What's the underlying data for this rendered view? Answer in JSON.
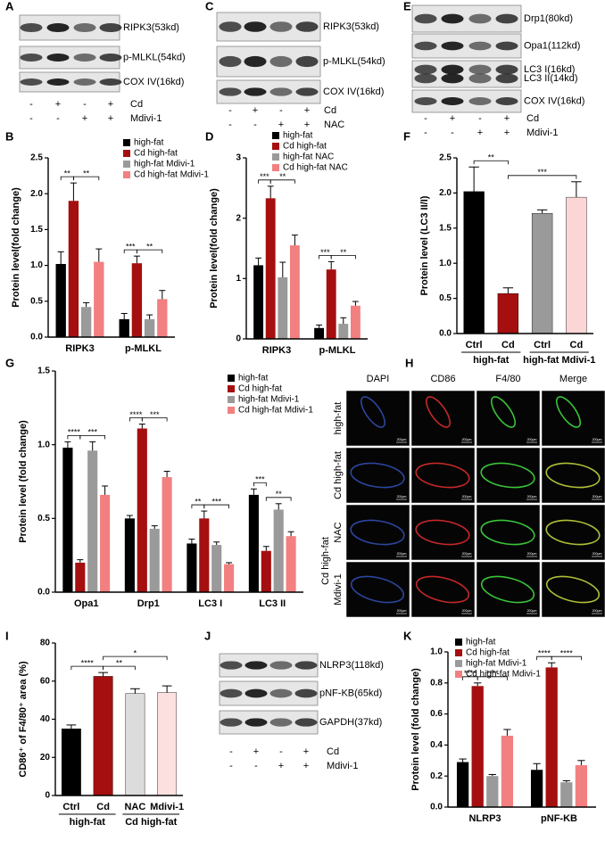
{
  "panel_letters": [
    "A",
    "B",
    "C",
    "D",
    "E",
    "F",
    "G",
    "H",
    "I",
    "J",
    "K"
  ],
  "blots": [
    {
      "labels": [
        "RIPK3(53kd)",
        "p-MLKL(54kd)",
        "COX IV(16kd)"
      ],
      "treatments": [
        {
          "name": "Cd",
          "signs": [
            "-",
            "+",
            "-",
            "+"
          ]
        },
        {
          "name": "Mdivi-1",
          "signs": [
            "-",
            "-",
            "+",
            "+"
          ]
        }
      ]
    },
    {
      "labels": [
        "RIPK3(53kd)",
        "p-MLKL(54kd)",
        "COX IV(16kd)"
      ],
      "treatments": [
        {
          "name": "Cd",
          "signs": [
            "-",
            "+",
            "-",
            "+"
          ]
        },
        {
          "name": "NAC",
          "signs": [
            "-",
            "-",
            "+",
            "+"
          ]
        }
      ]
    },
    {
      "labels": [
        "Drp1(80kd)",
        "Opa1(112kd)",
        "LC3 I(16kd)",
        "LC3 II(14kd)",
        "COX IV(16kd)"
      ],
      "treatments": [
        {
          "name": "Cd",
          "signs": [
            "-",
            "+",
            "-",
            "+"
          ]
        },
        {
          "name": "Mdivi-1",
          "signs": [
            "-",
            "-",
            "+",
            "+"
          ]
        }
      ]
    },
    {
      "labels": [
        "NLRP3(118kd)",
        "pNF-KB(65kd)",
        "GAPDH(37kd)"
      ],
      "treatments": [
        {
          "name": "Cd",
          "signs": [
            "-",
            "+",
            "-",
            "+"
          ]
        },
        {
          "name": "Mdivi-1",
          "signs": [
            "-",
            "-",
            "+",
            "+"
          ]
        }
      ]
    }
  ],
  "microscopy": {
    "columns": [
      "DAPI",
      "CD86",
      "F4/80",
      "Merge"
    ],
    "rows": [
      "high-fat",
      "Cd high-fat",
      "NAC",
      "Mdivi-1"
    ],
    "row_group": "Cd high-fat",
    "scale_bar": "200μm"
  },
  "chart_data": [
    {
      "type": "bar",
      "ylabel": "Protein level(fold change)",
      "categories": [
        "RIPK3",
        "p-MLKL"
      ],
      "series": [
        {
          "name": "high-fat",
          "color": "#000000",
          "values": [
            1.02,
            0.25
          ],
          "errors": [
            0.17,
            0.08
          ]
        },
        {
          "name": "Cd high-fat",
          "color": "#a50f0f",
          "values": [
            1.9,
            1.03
          ],
          "errors": [
            0.25,
            0.1
          ]
        },
        {
          "name": "high-fat Mdivi-1",
          "color": "#9a9a9a",
          "values": [
            0.42,
            0.25
          ],
          "errors": [
            0.06,
            0.06
          ]
        },
        {
          "name": "Cd high-fat Mdivi-1",
          "color": "#f28080",
          "values": [
            1.05,
            0.53
          ],
          "errors": [
            0.18,
            0.12
          ]
        }
      ],
      "ylim": [
        0,
        2.5
      ],
      "yticks": [
        {
          "value": 0,
          "label": "0.0"
        },
        {
          "value": 0.5,
          "label": "0.5"
        },
        {
          "value": 1,
          "label": "1.0"
        },
        {
          "value": 1.5,
          "label": "1.5"
        },
        {
          "value": 2,
          "label": "2.0"
        },
        {
          "value": 2.5,
          "label": "2.5"
        }
      ],
      "annotations": [
        "**",
        "**",
        "***",
        "**"
      ],
      "legend": "top-right",
      "grid": false
    },
    {
      "type": "bar",
      "ylabel": "Protein level(fold change)",
      "categories": [
        "RIPK3",
        "p-MLKL"
      ],
      "series": [
        {
          "name": "high-fat",
          "color": "#000000",
          "values": [
            1.22,
            0.18
          ],
          "errors": [
            0.12,
            0.05
          ]
        },
        {
          "name": "Cd high-fat",
          "color": "#a50f0f",
          "values": [
            2.33,
            1.15
          ],
          "errors": [
            0.2,
            0.13
          ]
        },
        {
          "name": "high-fat NAC",
          "color": "#9a9a9a",
          "values": [
            1.02,
            0.25
          ],
          "errors": [
            0.25,
            0.1
          ]
        },
        {
          "name": "Cd high-fat NAC",
          "color": "#f28080",
          "values": [
            1.55,
            0.55
          ],
          "errors": [
            0.17,
            0.07
          ]
        }
      ],
      "ylim": [
        0,
        3
      ],
      "yticks": [
        0,
        1,
        2,
        3
      ],
      "annotations": [
        "***",
        "**",
        "***",
        "**"
      ],
      "legend": "top-right",
      "grid": false
    },
    {
      "type": "bar",
      "ylabel": "Protein level (LC3 II/I)",
      "categories": [
        "Ctrl",
        "Cd",
        "Ctrl",
        "Cd"
      ],
      "groups": [
        "high-fat",
        "high-fat Mdivi-1"
      ],
      "values": [
        2.02,
        0.57,
        1.71,
        1.94
      ],
      "errors": [
        0.35,
        0.08,
        0.05,
        0.22
      ],
      "colors": [
        "#000000",
        "#a50f0f",
        "#9a9a9a",
        "#fcd6d6"
      ],
      "ylim": [
        0,
        2.5
      ],
      "yticks": [
        {
          "value": 0,
          "label": "0.0"
        },
        {
          "value": 0.5,
          "label": "0.5"
        },
        {
          "value": 1,
          "label": "1.0"
        },
        {
          "value": 1.5,
          "label": "1.5"
        },
        {
          "value": 2,
          "label": "2.0"
        },
        {
          "value": 2.5,
          "label": "2.5"
        }
      ],
      "annotations": [
        "**",
        "***"
      ],
      "grid": false
    },
    {
      "type": "bar",
      "ylabel": "Protein level (fold change)",
      "categories": [
        "Opa1",
        "Drp1",
        "LC3 I",
        "LC3 II"
      ],
      "series": [
        {
          "name": "high-fat",
          "color": "#000000",
          "values": [
            0.98,
            0.5,
            0.33,
            0.66
          ],
          "errors": [
            0.04,
            0.02,
            0.03,
            0.04
          ]
        },
        {
          "name": "Cd high-fat",
          "color": "#a50f0f",
          "values": [
            0.2,
            1.11,
            0.5,
            0.28
          ],
          "errors": [
            0.02,
            0.03,
            0.05,
            0.03
          ]
        },
        {
          "name": "high-fat Mdivi-1",
          "color": "#9a9a9a",
          "values": [
            0.96,
            0.43,
            0.32,
            0.56
          ],
          "errors": [
            0.06,
            0.02,
            0.02,
            0.04
          ]
        },
        {
          "name": "Cd high-fat Mdivi-1",
          "color": "#f28080",
          "values": [
            0.66,
            0.78,
            0.19,
            0.38
          ],
          "errors": [
            0.06,
            0.04,
            0.01,
            0.03
          ]
        }
      ],
      "ylim": [
        0,
        1.5
      ],
      "yticks": [
        {
          "value": 0,
          "label": "0.0"
        },
        {
          "value": 0.5,
          "label": "0.5"
        },
        {
          "value": 1,
          "label": "1.0"
        },
        {
          "value": 1.5,
          "label": "1.5"
        }
      ],
      "annotations": [
        "****",
        "***",
        "****",
        "***",
        "**",
        "***",
        "***",
        "**"
      ],
      "legend": "top-right",
      "grid": false
    },
    {
      "type": "bar",
      "ylabel": "CD86⁺ of F4/80⁺ area (%)",
      "categories": [
        "Ctrl",
        "Cd",
        "NAC",
        "Mdivi-1"
      ],
      "groups": [
        "high-fat",
        "Cd high-fat"
      ],
      "values": [
        35,
        62.5,
        53.5,
        54
      ],
      "errors": [
        2,
        2,
        2.5,
        3.5
      ],
      "colors": [
        "#000000",
        "#a50f0f",
        "#dcdcdc",
        "#fce0e0"
      ],
      "ylim": [
        0,
        80
      ],
      "yticks": [
        0,
        20,
        40,
        60,
        80
      ],
      "annotations": [
        "****",
        "**",
        "*"
      ],
      "grid": false
    },
    {
      "type": "bar",
      "ylabel": "Protein level (fold change)",
      "categories": [
        "NLRP3",
        "pNF-KB"
      ],
      "series": [
        {
          "name": "high-fat",
          "color": "#000000",
          "values": [
            0.29,
            0.24
          ],
          "errors": [
            0.02,
            0.04
          ]
        },
        {
          "name": "Cd high-fat",
          "color": "#a50f0f",
          "values": [
            0.78,
            0.9
          ],
          "errors": [
            0.02,
            0.03
          ]
        },
        {
          "name": "high-fat Mdivi-1",
          "color": "#9a9a9a",
          "values": [
            0.2,
            0.16
          ],
          "errors": [
            0.01,
            0.01
          ]
        },
        {
          "name": "Cd high-fat Mdivi-1",
          "color": "#f28080",
          "values": [
            0.46,
            0.27
          ],
          "errors": [
            0.04,
            0.03
          ]
        }
      ],
      "ylim": [
        0,
        1
      ],
      "yticks": [
        {
          "value": 0,
          "label": "0.0"
        },
        {
          "value": 0.2,
          "label": "0.2"
        },
        {
          "value": 0.4,
          "label": "0.4"
        },
        {
          "value": 0.6,
          "label": "0.6"
        },
        {
          "value": 0.8,
          "label": "0.8"
        },
        {
          "value": 1,
          "label": "1.0"
        }
      ],
      "annotations": [
        "****",
        "****",
        "****",
        "****"
      ],
      "legend": "top-left",
      "grid": false
    }
  ]
}
